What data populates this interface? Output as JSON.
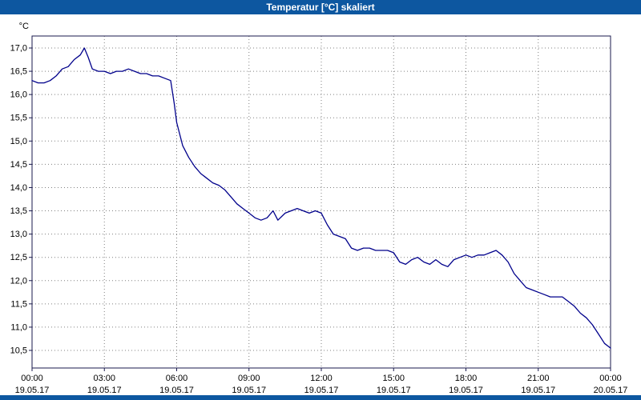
{
  "window": {
    "title": "Temperatur [°C] skaliert"
  },
  "colors": {
    "titlebar": "#0d57a0",
    "line": "#00008b",
    "grid": "#808080",
    "border": "#1a1a4e",
    "label": "#000000"
  },
  "chart_data": {
    "type": "line",
    "title": "Temperatur [°C] skaliert",
    "xlabel": "",
    "ylabel": "°C",
    "ylim": [
      10.5,
      17.0
    ],
    "ytick_step": 0.5,
    "grid": "dotted",
    "x_ticks": [
      {
        "hour": 0,
        "time": "00:00",
        "date": "19.05.17"
      },
      {
        "hour": 3,
        "time": "03:00",
        "date": "19.05.17"
      },
      {
        "hour": 6,
        "time": "06:00",
        "date": "19.05.17"
      },
      {
        "hour": 9,
        "time": "09:00",
        "date": "19.05.17"
      },
      {
        "hour": 12,
        "time": "12:00",
        "date": "19.05.17"
      },
      {
        "hour": 15,
        "time": "15:00",
        "date": "19.05.17"
      },
      {
        "hour": 18,
        "time": "18:00",
        "date": "19.05.17"
      },
      {
        "hour": 21,
        "time": "21:00",
        "date": "19.05.17"
      },
      {
        "hour": 24,
        "time": "00:00",
        "date": "20.05.17"
      }
    ],
    "series": [
      {
        "name": "Temperatur",
        "color": "#00008b",
        "x": [
          0,
          0.25,
          0.5,
          0.75,
          1.0,
          1.25,
          1.5,
          1.75,
          2.0,
          2.17,
          2.33,
          2.5,
          2.75,
          3.0,
          3.25,
          3.5,
          3.75,
          4.0,
          4.25,
          4.5,
          4.75,
          5.0,
          5.25,
          5.5,
          5.75,
          5.9,
          6.0,
          6.25,
          6.5,
          6.75,
          7.0,
          7.25,
          7.5,
          7.75,
          8.0,
          8.25,
          8.5,
          8.75,
          9.0,
          9.25,
          9.5,
          9.75,
          10.0,
          10.2,
          10.5,
          10.75,
          11.0,
          11.25,
          11.5,
          11.75,
          12.0,
          12.25,
          12.5,
          12.75,
          13.0,
          13.25,
          13.5,
          13.75,
          14.0,
          14.25,
          14.5,
          14.75,
          15.0,
          15.25,
          15.5,
          15.75,
          16.0,
          16.25,
          16.5,
          16.75,
          17.0,
          17.25,
          17.5,
          17.75,
          18.0,
          18.25,
          18.5,
          18.75,
          19.0,
          19.25,
          19.5,
          19.75,
          20.0,
          20.25,
          20.5,
          20.75,
          21.0,
          21.25,
          21.5,
          21.75,
          22.0,
          22.25,
          22.5,
          22.75,
          23.0,
          23.25,
          23.5,
          23.75,
          24.0
        ],
        "y": [
          16.3,
          16.25,
          16.25,
          16.3,
          16.4,
          16.55,
          16.6,
          16.75,
          16.85,
          17.0,
          16.8,
          16.55,
          16.5,
          16.5,
          16.45,
          16.5,
          16.5,
          16.55,
          16.5,
          16.45,
          16.45,
          16.4,
          16.4,
          16.35,
          16.3,
          15.8,
          15.4,
          14.9,
          14.65,
          14.45,
          14.3,
          14.2,
          14.1,
          14.05,
          13.95,
          13.8,
          13.65,
          13.55,
          13.45,
          13.35,
          13.3,
          13.35,
          13.5,
          13.3,
          13.45,
          13.5,
          13.55,
          13.5,
          13.45,
          13.5,
          13.45,
          13.2,
          13.0,
          12.95,
          12.9,
          12.7,
          12.65,
          12.7,
          12.7,
          12.65,
          12.65,
          12.65,
          12.6,
          12.4,
          12.35,
          12.45,
          12.5,
          12.4,
          12.35,
          12.45,
          12.35,
          12.3,
          12.45,
          12.5,
          12.55,
          12.5,
          12.55,
          12.55,
          12.6,
          12.65,
          12.55,
          12.4,
          12.15,
          12.0,
          11.85,
          11.8,
          11.75,
          11.7,
          11.65,
          11.65,
          11.65,
          11.55,
          11.45,
          11.3,
          11.2,
          11.05,
          10.85,
          10.65,
          10.55
        ]
      }
    ]
  }
}
